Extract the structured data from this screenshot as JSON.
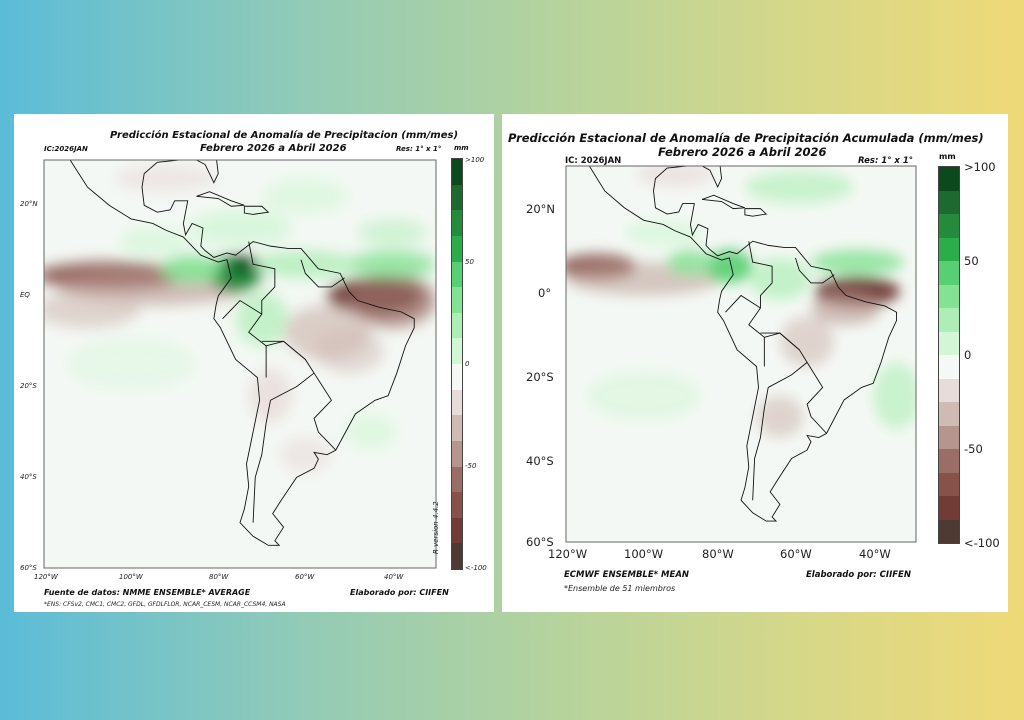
{
  "colorbar_colors": [
    "#0c4a1e",
    "#1d6a30",
    "#248a3c",
    "#2aad4a",
    "#58cf72",
    "#84e294",
    "#aeeeb6",
    "#d2f6d6",
    "#f6f8f6",
    "#e8dcda",
    "#d0bab4",
    "#b5958e",
    "#9a6e66",
    "#87524a",
    "#703c35",
    "#4f3933"
  ],
  "left": {
    "title": "Predicción Estacional de Anomalía de Precipitacion (mm/mes)",
    "subtitle": "Febrero 2026 a Abril 2026",
    "ic": "IC:2026JAN",
    "res": "Res: 1° x 1°",
    "unit": "mm",
    "cbar_labels": [
      ">100",
      "50",
      "0",
      "-50",
      "<-100"
    ],
    "lat_labels": [
      "20°N",
      "EQ",
      "20°S",
      "40°S",
      "60°S"
    ],
    "lon_labels": [
      "120°W",
      "100°W",
      "80°W",
      "60°W",
      "40°W"
    ],
    "source": "Fuente de datos: NMME ENSEMBLE* AVERAGE",
    "credit": "Elaborado por: CIIFEN",
    "footnote": "*ENS: CFSv2, CMC1, CMC2, GFDL, GFDLFLOR, NCAR_CESM, NCAR_CCSM4, NASA",
    "version": "R version 4.4.2"
  },
  "right": {
    "title": "Predicción Estacional de Anomalía de Precipitación Acumulada (mm/mes)",
    "subtitle": "Febrero 2026 a Abril 2026",
    "ic": "IC: 2026JAN",
    "res": "Res: 1° x 1°",
    "unit": "mm",
    "cbar_labels": [
      ">100",
      "50",
      "0",
      "-50",
      "<-100"
    ],
    "lat_labels": [
      "20°N",
      "0°",
      "20°S",
      "40°S",
      "60°S"
    ],
    "lon_labels": [
      "120°W",
      "100°W",
      "80°W",
      "60°W",
      "40°W"
    ],
    "source": "ECMWF ENSEMBLE* MEAN",
    "credit": "Elaborado por: CIIFEN",
    "footnote": "*Ensemble de 51 miembros"
  }
}
